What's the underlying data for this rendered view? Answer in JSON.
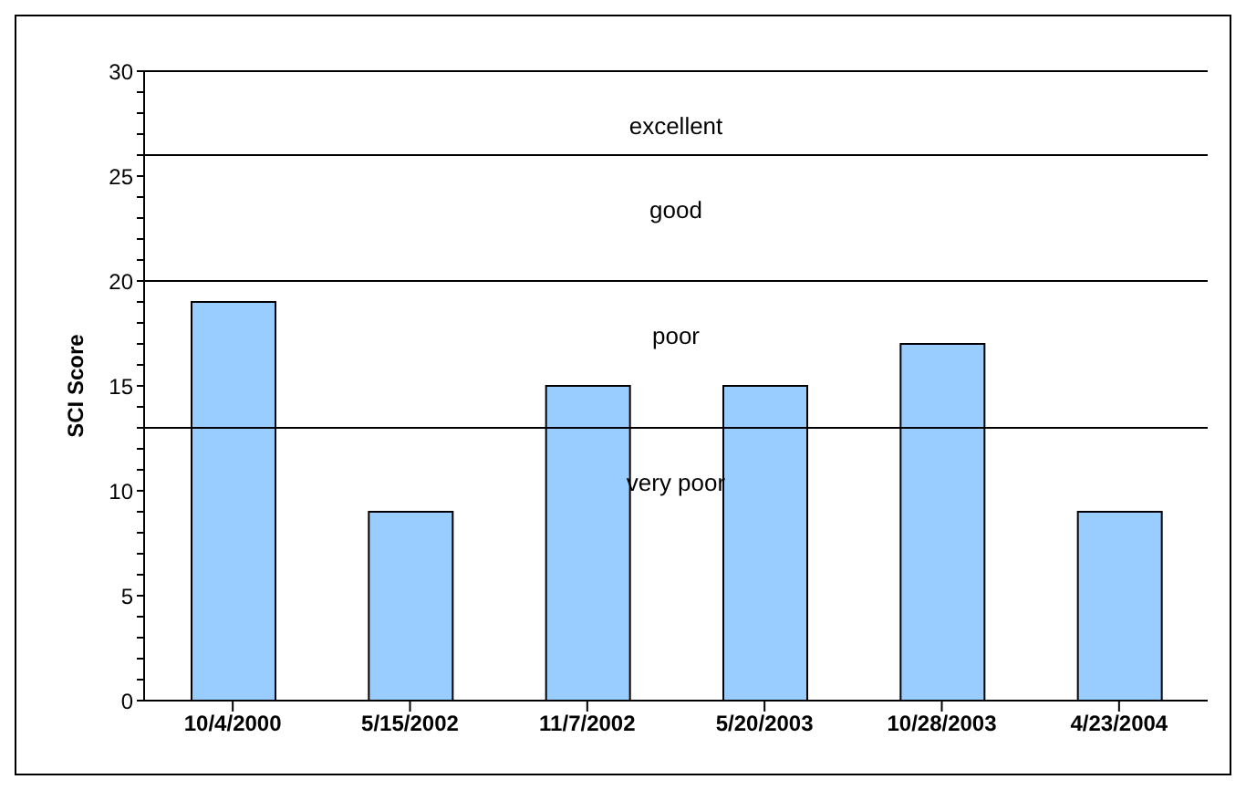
{
  "chart_data": {
    "type": "bar",
    "ylabel": "SCI Score",
    "categories": [
      "10/4/2000",
      "5/15/2002",
      "11/7/2002",
      "5/20/2003",
      "10/28/2003",
      "4/23/2004"
    ],
    "values": [
      19,
      9,
      15,
      15,
      17,
      9
    ],
    "color": "#99ccff",
    "ylim": [
      0,
      30
    ],
    "yticks": [
      0,
      {
        "value": 1,
        "label": null
      },
      {
        "value": 2,
        "label": null
      },
      {
        "value": 3,
        "label": null
      },
      {
        "value": 4,
        "label": null
      },
      5,
      {
        "value": 6,
        "label": null
      },
      {
        "value": 7,
        "label": null
      },
      {
        "value": 8,
        "label": null
      },
      {
        "value": 9,
        "label": null
      },
      10,
      {
        "value": 11,
        "label": null
      },
      {
        "value": 12,
        "label": null
      },
      {
        "value": 13,
        "label": null
      },
      {
        "value": 14,
        "label": null
      },
      15,
      {
        "value": 16,
        "label": null
      },
      {
        "value": 17,
        "label": null
      },
      {
        "value": 18,
        "label": null
      },
      {
        "value": 19,
        "label": null
      },
      20,
      {
        "value": 21,
        "label": null
      },
      {
        "value": 22,
        "label": null
      },
      {
        "value": 23,
        "label": null
      },
      {
        "value": 24,
        "label": null
      },
      25,
      {
        "value": 26,
        "label": null
      },
      {
        "value": 27,
        "label": null
      },
      {
        "value": 28,
        "label": null
      },
      {
        "value": 29,
        "label": null
      },
      30
    ],
    "ref_lines": [
      {
        "axis": "y",
        "value": 13
      },
      {
        "axis": "y",
        "value": 20
      },
      {
        "axis": "y",
        "value": 26
      }
    ],
    "annotations": [
      "excellent",
      "good",
      "poor",
      "very poor"
    ]
  }
}
